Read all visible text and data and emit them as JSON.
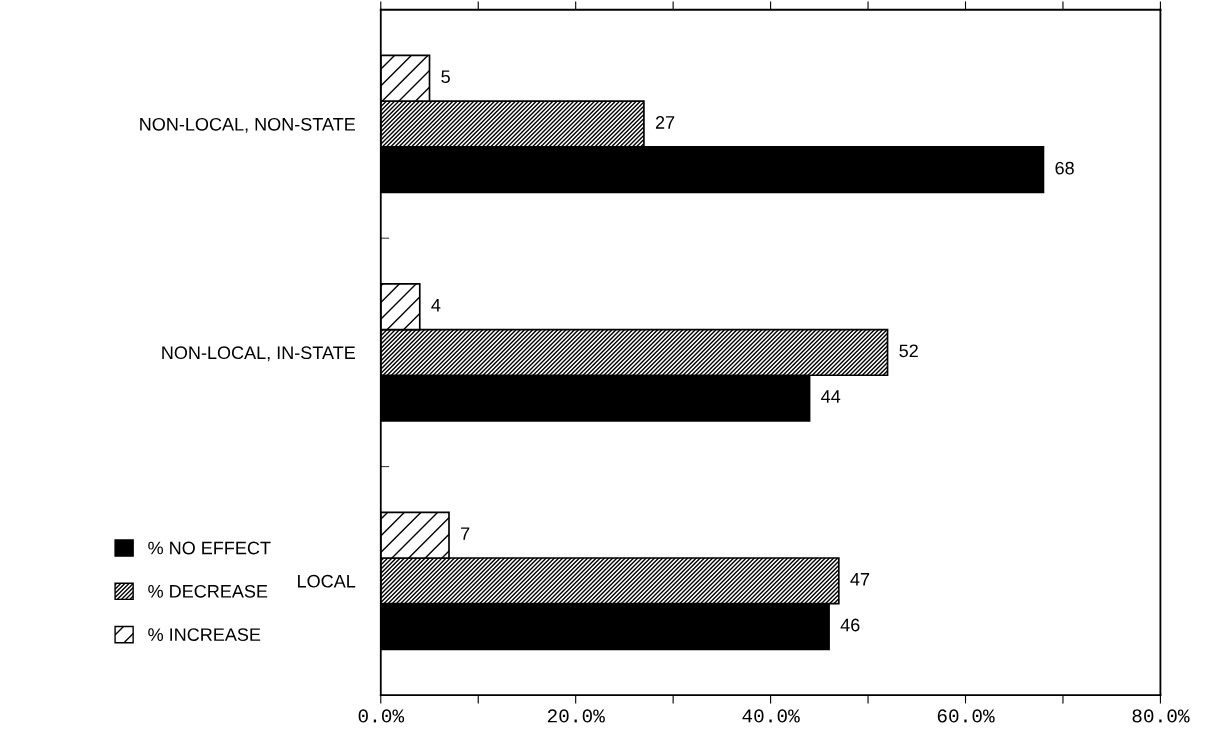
{
  "chart_data": {
    "type": "bar",
    "orientation": "horizontal",
    "categories": [
      "NON-LOCAL, NON-STATE",
      "NON-LOCAL, IN-STATE",
      "LOCAL"
    ],
    "series": [
      {
        "name": "% NO EFFECT",
        "color": "#000000",
        "values": [
          68,
          44,
          46
        ]
      },
      {
        "name": "% DECREASE",
        "color": "#000000",
        "values": [
          27,
          52,
          47
        ]
      },
      {
        "name": "% INCREASE",
        "color": "#000000",
        "values": [
          5,
          4,
          7
        ]
      }
    ],
    "xlim": [
      0,
      80
    ],
    "xticks": [
      {
        "value": 0,
        "label": "0.0%"
      },
      {
        "value": 10,
        "label": null
      },
      {
        "value": 20,
        "label": "20.0%"
      },
      {
        "value": 30,
        "label": null
      },
      {
        "value": 40,
        "label": "40.0%"
      },
      {
        "value": 50,
        "label": null
      },
      {
        "value": 60,
        "label": "60.0%"
      },
      {
        "value": 70,
        "label": null
      },
      {
        "value": 80,
        "label": "80.0%"
      }
    ],
    "data_labels": true,
    "legend": "bottom left",
    "grid": false
  }
}
